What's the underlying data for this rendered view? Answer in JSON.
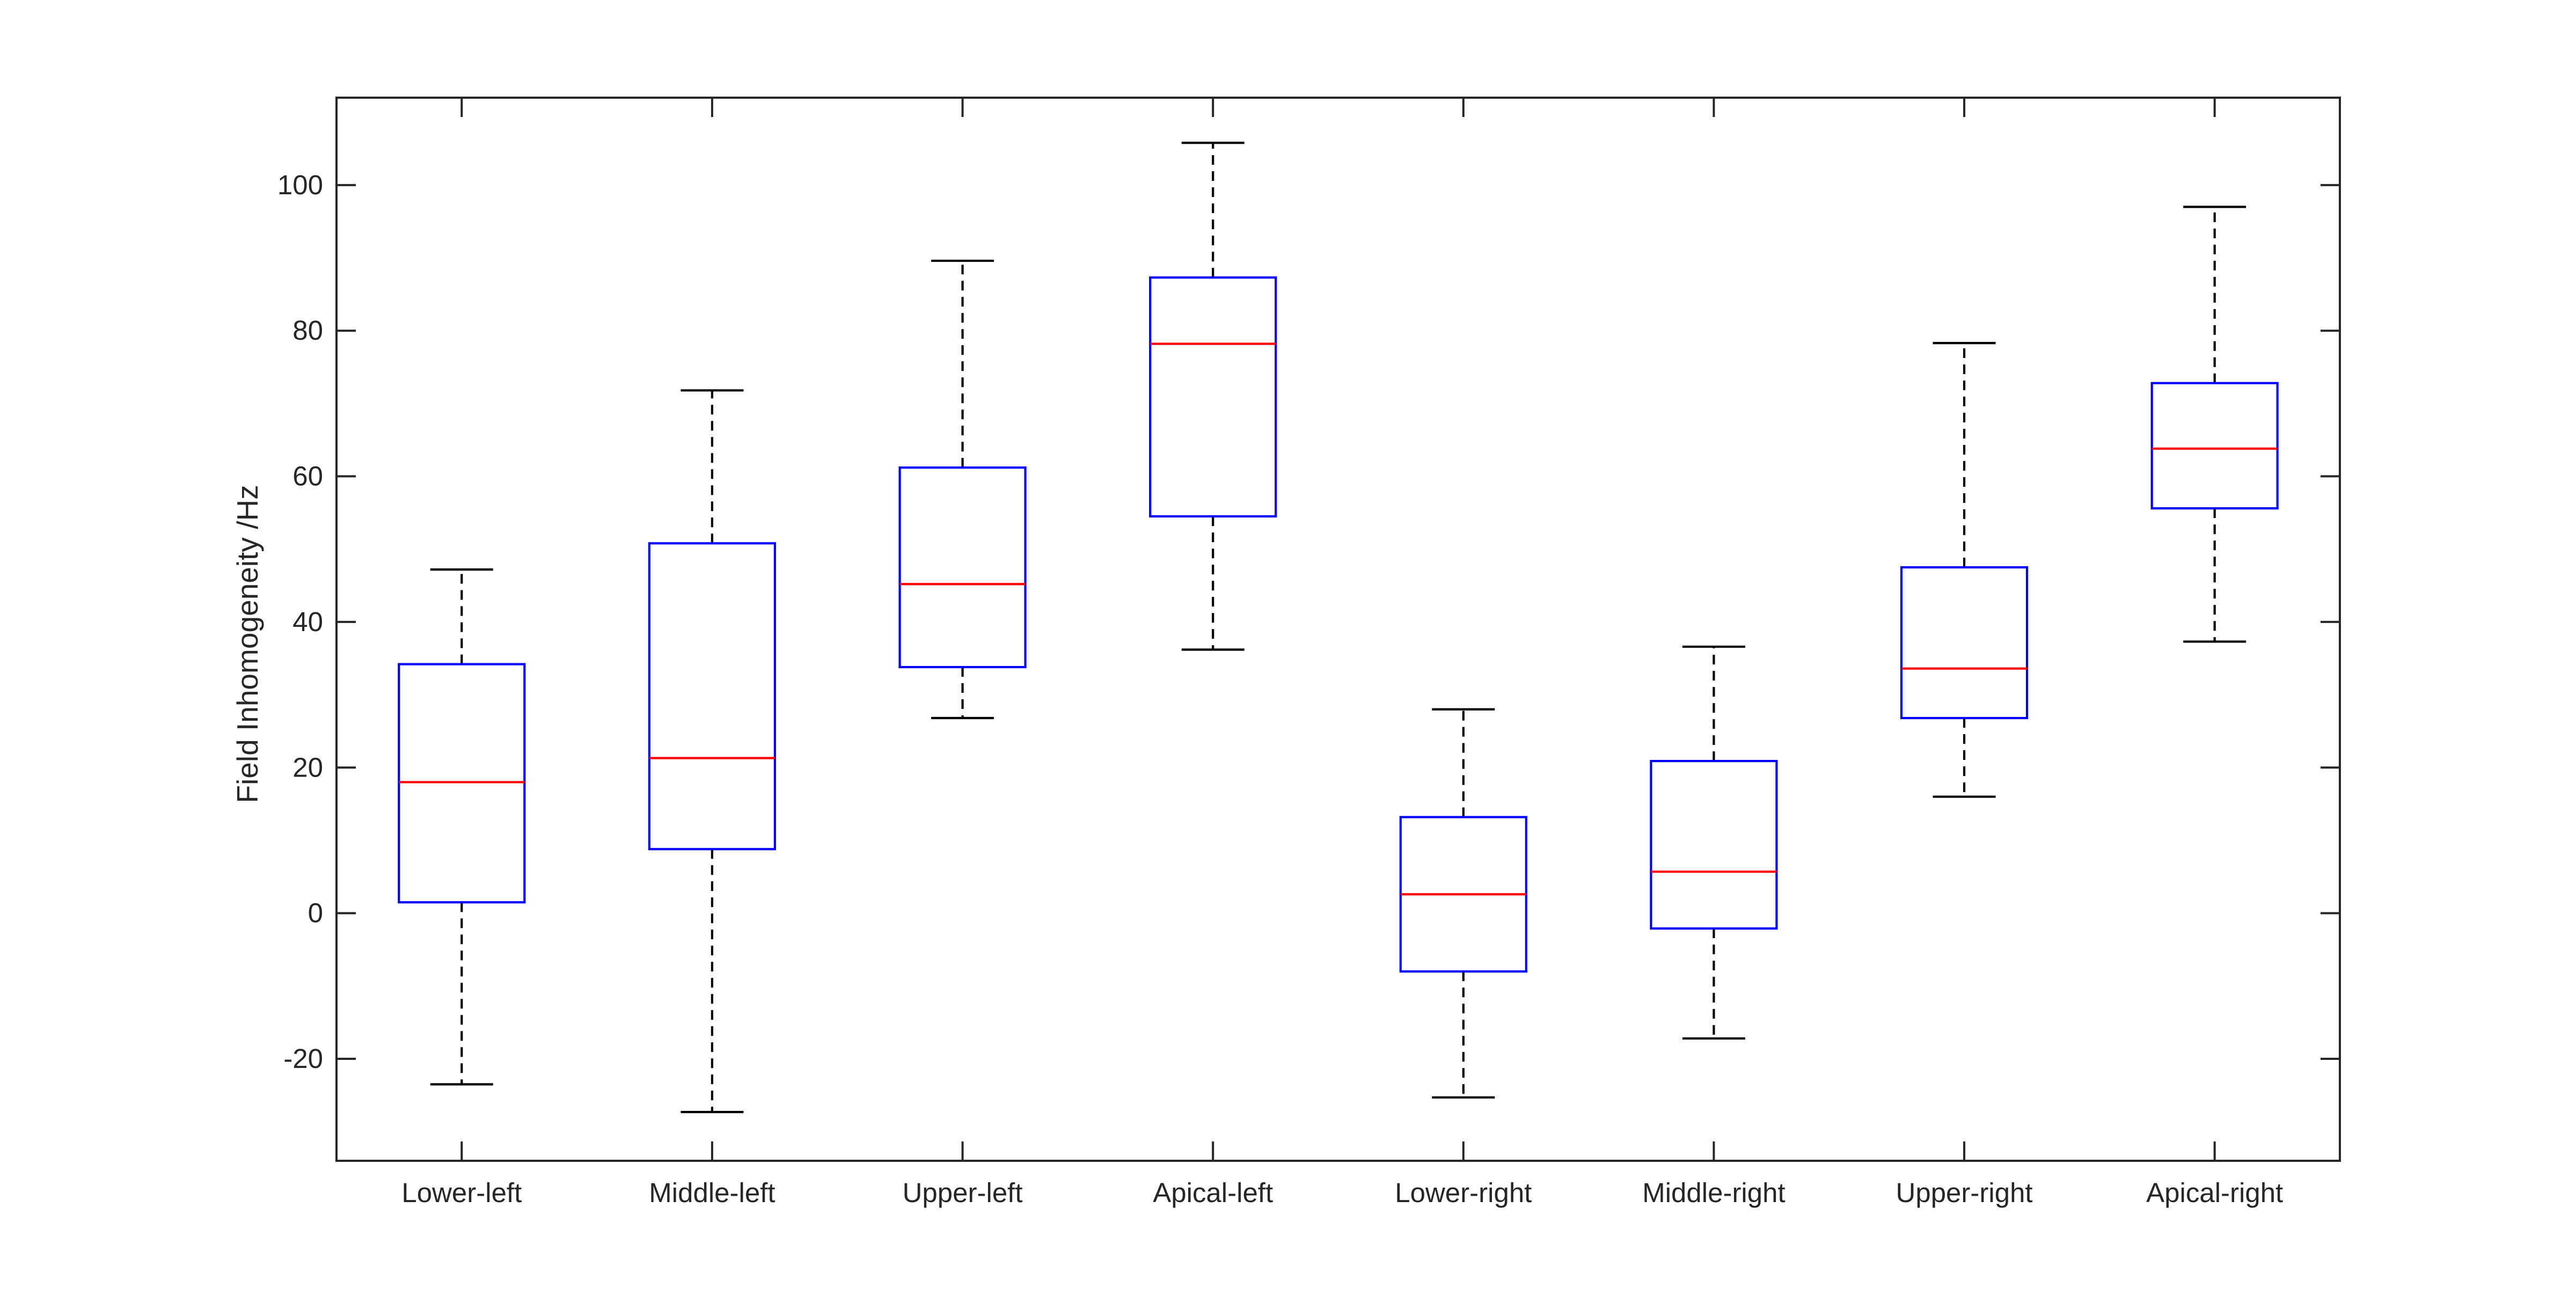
{
  "chart_data": {
    "type": "box",
    "title": "",
    "xlabel": "",
    "ylabel": "Field Inhomogeneity /Hz",
    "ylim": [
      -34,
      112
    ],
    "yticks": [
      -20,
      0,
      20,
      40,
      60,
      80,
      100
    ],
    "ytick_labels": [
      "-20",
      "0",
      "20",
      "40",
      "60",
      "80",
      "100"
    ],
    "grid": false,
    "categories": [
      "Lower-left",
      "Middle-left",
      "Upper-left",
      "Apical-left",
      "Lower-right",
      "Middle-right",
      "Upper-right",
      "Apical-right"
    ],
    "boxes": [
      {
        "whisker_low": -23.5,
        "q1": 1.5,
        "median": 18.0,
        "q3": 34.2,
        "whisker_high": 47.2
      },
      {
        "whisker_low": -27.3,
        "q1": 8.8,
        "median": 21.3,
        "q3": 50.8,
        "whisker_high": 71.8
      },
      {
        "whisker_low": 26.8,
        "q1": 33.8,
        "median": 45.2,
        "q3": 61.2,
        "whisker_high": 89.6
      },
      {
        "whisker_low": 36.2,
        "q1": 54.5,
        "median": 78.2,
        "q3": 87.3,
        "whisker_high": 105.8
      },
      {
        "whisker_low": -25.3,
        "q1": -8.0,
        "median": 2.6,
        "q3": 13.2,
        "whisker_high": 28.0
      },
      {
        "whisker_low": -17.2,
        "q1": -2.1,
        "median": 5.7,
        "q3": 20.9,
        "whisker_high": 36.6
      },
      {
        "whisker_low": 16.0,
        "q1": 26.8,
        "median": 33.6,
        "q3": 47.5,
        "whisker_high": 78.3
      },
      {
        "whisker_low": 37.3,
        "q1": 55.6,
        "median": 63.8,
        "q3": 72.8,
        "whisker_high": 97.0
      }
    ],
    "colors": {
      "box": "#0000ff",
      "median": "#ff0000",
      "whisker": "#000000",
      "axis": "#262626"
    }
  }
}
